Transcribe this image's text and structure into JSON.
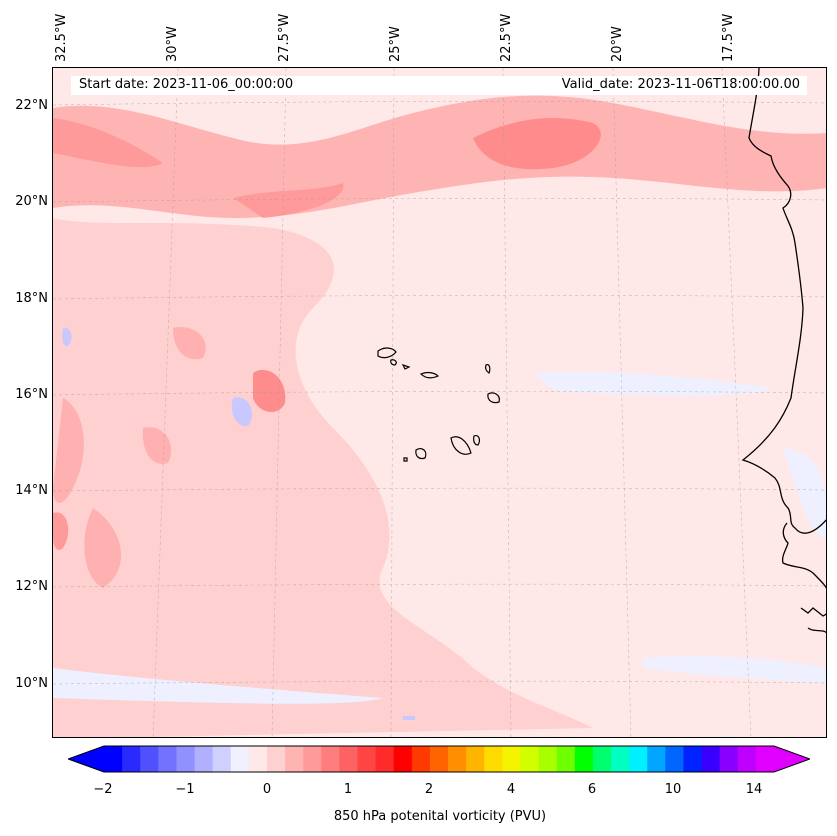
{
  "header": {
    "start_date": "Start date: 2023-11-06_00:00:00",
    "valid_date": "Valid_date: 2023-11-06T18:00:00.00"
  },
  "axes": {
    "lon_labels": [
      "32.5°W",
      "30°W",
      "27.5°W",
      "25°W",
      "22.5°W",
      "20°W",
      "17.5°W"
    ],
    "lat_labels": [
      "22°N",
      "20°N",
      "18°N",
      "16°N",
      "14°N",
      "12°N",
      "10°N"
    ]
  },
  "colorbar": {
    "label": "850 hPa potenital vorticity (PVU)",
    "tick_labels": [
      "−2",
      "−1",
      "0",
      "1",
      "2",
      "4",
      "6",
      "10",
      "14"
    ],
    "colors": [
      "#0000ff",
      "#2a2aff",
      "#5050ff",
      "#7272ff",
      "#9090ff",
      "#b0b0ff",
      "#d0d0ff",
      "#f0f0ff",
      "#ffe8e8",
      "#ffd0d0",
      "#ffb4b4",
      "#ff9a9a",
      "#ff7d7d",
      "#ff6262",
      "#ff4444",
      "#ff2a2a",
      "#ff0000",
      "#ff3a00",
      "#ff6400",
      "#ff8f00",
      "#ffb400",
      "#ffdc00",
      "#f4f400",
      "#d2ff00",
      "#a8ff00",
      "#6eff00",
      "#00ff00",
      "#00ff6e",
      "#00ffc0",
      "#00f0ff",
      "#00a6ff",
      "#0066ff",
      "#0022ff",
      "#3a00ff",
      "#8800ff",
      "#c000ff",
      "#e000ff"
    ],
    "extend_low_color": "#0000ff",
    "extend_high_color": "#e000ff"
  },
  "map_colors": {
    "background": "#ffe8e8",
    "weak_positive": "#ffd2d2",
    "moderate_positive": "#ffb0b0",
    "strong_positive": "#ff8c8c",
    "weak_negative": "#eef0ff",
    "moderate_negative": "#c8c8ff",
    "coast": "#000000"
  }
}
